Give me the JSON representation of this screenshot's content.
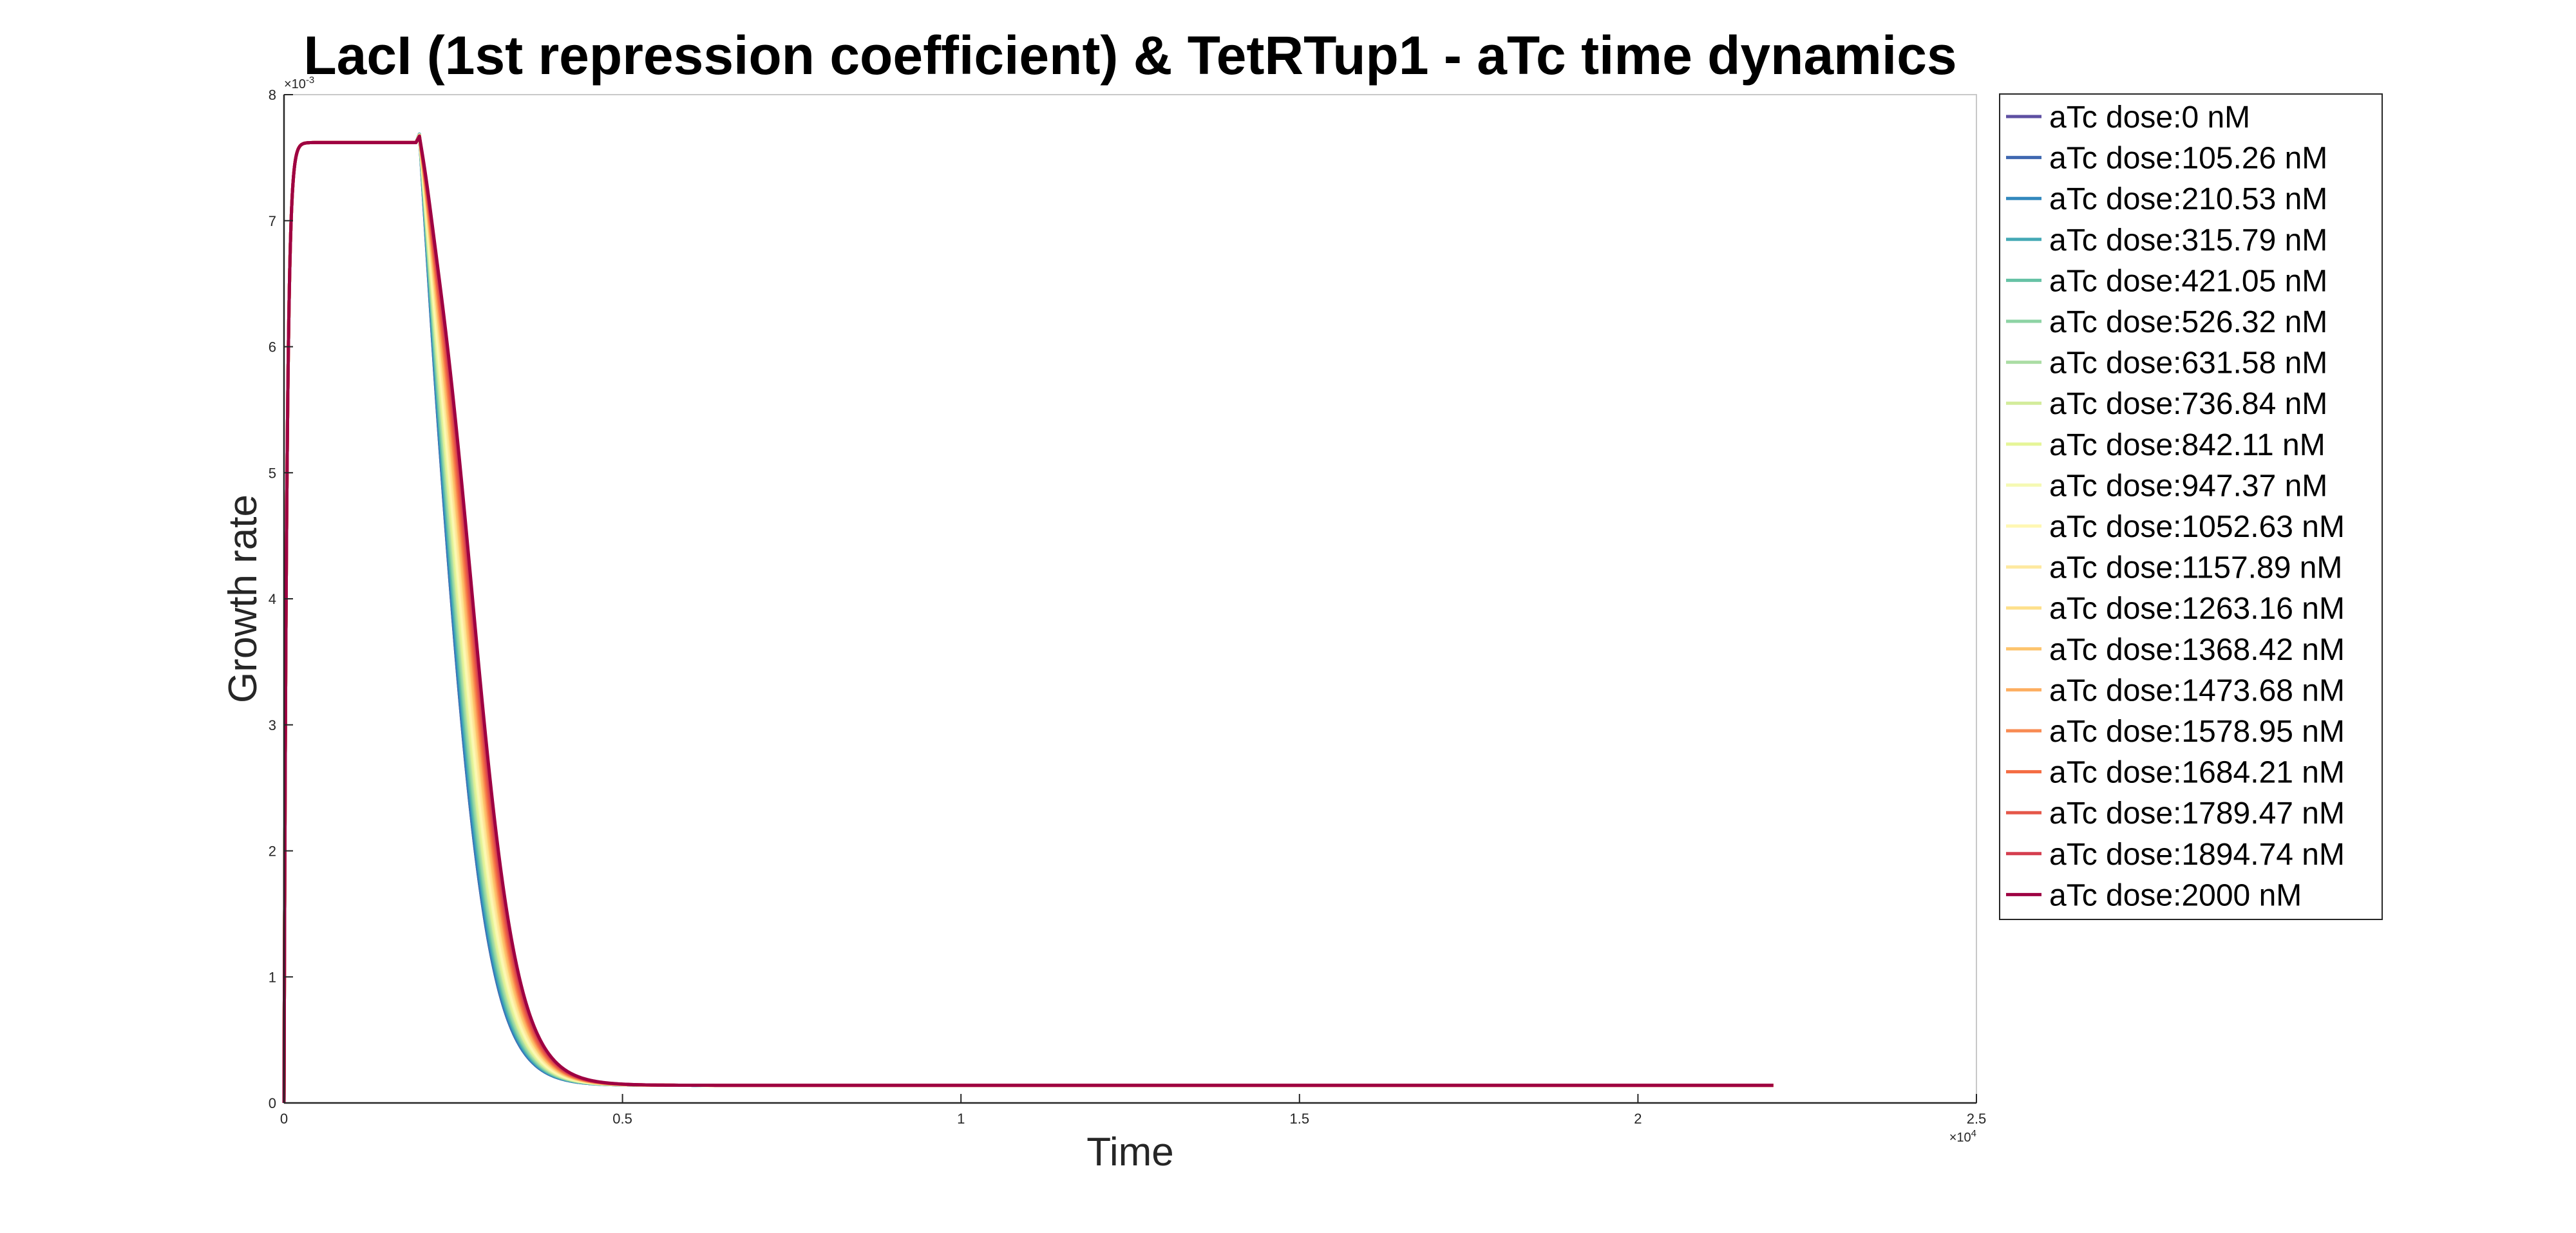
{
  "chart_data": {
    "type": "line",
    "title": "LacI (1st repression coefficient) & TetRTup1 - aTc time dynamics",
    "xlabel": "Time",
    "ylabel": "Growth rate",
    "x_exponent_label": "×10^4",
    "y_exponent_label": "×10^-3",
    "xlim": [
      0,
      25000
    ],
    "ylim": [
      0,
      0.008
    ],
    "x_ticks": [
      0,
      5000,
      10000,
      15000,
      20000,
      25000
    ],
    "x_tick_labels": [
      "0",
      "0.5",
      "1",
      "1.5",
      "2",
      "2.5"
    ],
    "y_ticks": [
      0,
      0.001,
      0.002,
      0.003,
      0.004,
      0.005,
      0.006,
      0.007,
      0.008
    ],
    "y_tick_labels": [
      "0",
      "1",
      "2",
      "3",
      "4",
      "5",
      "6",
      "7",
      "8"
    ],
    "grid": false,
    "legend_position": "outside-right-top",
    "x_end": 22000,
    "plateau": 0.00762,
    "baseline": 0.00014,
    "series": [
      {
        "name": "aTc dose:0 nM",
        "color": "#5e4fa2",
        "drop_time": 2450
      },
      {
        "name": "aTc dose:105.26 nM",
        "color": "#3f68b0",
        "drop_time": 2450
      },
      {
        "name": "aTc dose:210.53 nM",
        "color": "#3288bd",
        "drop_time": 2460
      },
      {
        "name": "aTc dose:315.79 nM",
        "color": "#45a9b5",
        "drop_time": 2480
      },
      {
        "name": "aTc dose:421.05 nM",
        "color": "#66c2a5",
        "drop_time": 2500
      },
      {
        "name": "aTc dose:526.32 nM",
        "color": "#8dd3a4",
        "drop_time": 2520
      },
      {
        "name": "aTc dose:631.58 nM",
        "color": "#abdda4",
        "drop_time": 2540
      },
      {
        "name": "aTc dose:736.84 nM",
        "color": "#d3ec9b",
        "drop_time": 2560
      },
      {
        "name": "aTc dose:842.11 nM",
        "color": "#e6f598",
        "drop_time": 2580
      },
      {
        "name": "aTc dose:947.37 nM",
        "color": "#f5f9b3",
        "drop_time": 2600
      },
      {
        "name": "aTc dose:1052.63 nM",
        "color": "#fff7b2",
        "drop_time": 2620
      },
      {
        "name": "aTc dose:1157.89 nM",
        "color": "#fee9a0",
        "drop_time": 2640
      },
      {
        "name": "aTc dose:1263.16 nM",
        "color": "#fee08b",
        "drop_time": 2660
      },
      {
        "name": "aTc dose:1368.42 nM",
        "color": "#fdc46d",
        "drop_time": 2680
      },
      {
        "name": "aTc dose:1473.68 nM",
        "color": "#fdae61",
        "drop_time": 2700
      },
      {
        "name": "aTc dose:1578.95 nM",
        "color": "#f88b52",
        "drop_time": 2720
      },
      {
        "name": "aTc dose:1684.21 nM",
        "color": "#f46d43",
        "drop_time": 2740
      },
      {
        "name": "aTc dose:1789.47 nM",
        "color": "#e55749",
        "drop_time": 2760
      },
      {
        "name": "aTc dose:1894.74 nM",
        "color": "#d53e4f",
        "drop_time": 2780
      },
      {
        "name": "aTc dose:2000 nM",
        "color": "#9e0142",
        "drop_time": 2800
      }
    ]
  }
}
